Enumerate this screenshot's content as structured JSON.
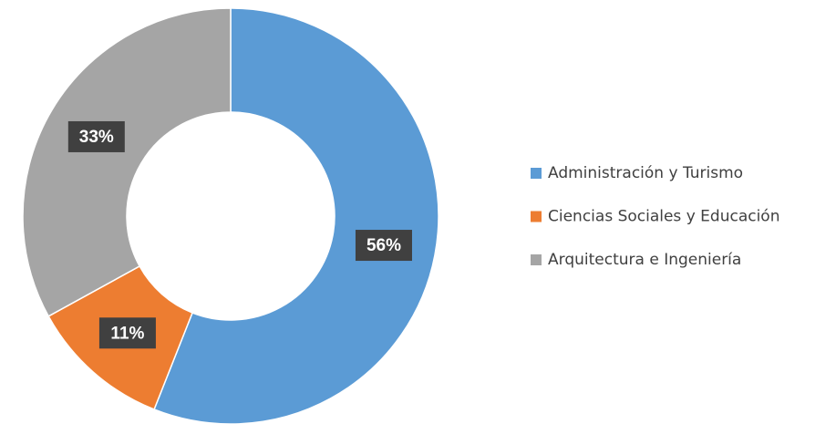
{
  "chart_data": {
    "type": "donut",
    "categories": [
      "Administración y Turismo",
      "Ciencias Sociales y Educación",
      "Arquitectura e Ingeniería"
    ],
    "values": [
      56,
      11,
      33
    ],
    "value_labels": [
      "56%",
      "11%",
      "33%"
    ],
    "colors": [
      "#5b9bd5",
      "#ed7d31",
      "#a5a5a5"
    ],
    "legend": "right"
  }
}
